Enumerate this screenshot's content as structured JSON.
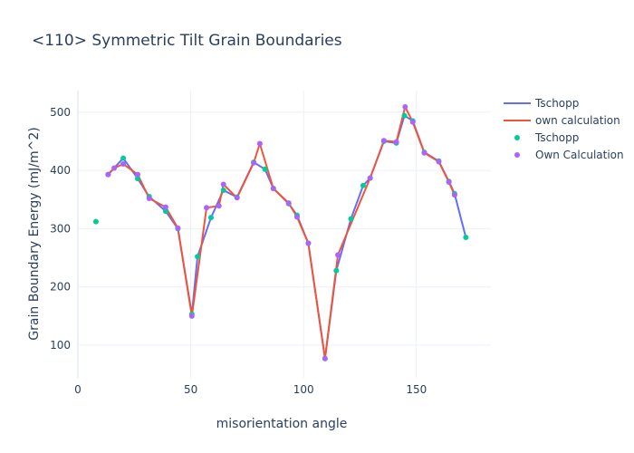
{
  "chart_data": {
    "type": "line",
    "title": "<110> Symmetric Tilt Grain Boundaries",
    "xlabel": "misorientation angle",
    "ylabel": "Grain Boundary Energy (mJ/m^2)",
    "xlim": [
      0,
      183
    ],
    "ylim": [
      44,
      537
    ],
    "xticks": [
      0,
      50,
      100,
      150
    ],
    "yticks": [
      100,
      200,
      300,
      400,
      500
    ],
    "grid": true,
    "legend_position": "top-right",
    "series": [
      {
        "name": "Tschopp",
        "mode": "lines",
        "color": "#636efa",
        "x": [
          13.4,
          20.1,
          26.5,
          31.6,
          38.9,
          44.3,
          50.5,
          53.0,
          58.99,
          64.5,
          70.5,
          77.9,
          82.9,
          86.6,
          93.4,
          97.1,
          102.1,
          109.5,
          114.5,
          121.0,
          126.4,
          129.5,
          135.6,
          141.1,
          144.7,
          148.4,
          153.5,
          159.9,
          164.4,
          166.9,
          171.9
        ],
        "y": [
          393,
          421,
          386,
          355,
          330,
          300,
          153,
          252,
          319,
          366,
          354,
          414,
          402,
          369,
          343,
          323,
          275,
          77,
          228,
          317,
          374,
          387,
          450,
          447,
          494,
          485,
          431,
          416,
          381,
          360,
          285
        ]
      },
      {
        "name": "own calculation",
        "mode": "lines",
        "color": "#ef553b",
        "x": [
          13.4,
          16.1,
          20.1,
          26.5,
          31.6,
          38.9,
          44.3,
          50.5,
          57.0,
          62.5,
          64.5,
          70.5,
          77.9,
          80.6,
          86.6,
          93.4,
          97.1,
          102.1,
          109.5,
          115.2,
          129.5,
          135.6,
          141.1,
          145.0,
          148.4,
          153.5,
          159.9,
          164.4,
          166.9
        ],
        "y": [
          393,
          404,
          411,
          393,
          352,
          337,
          301,
          150,
          336,
          339,
          376,
          353,
          413,
          446,
          369,
          344,
          320,
          275,
          77,
          255,
          387,
          451,
          449,
          509,
          483,
          430,
          415,
          380,
          358
        ]
      },
      {
        "name": "Tschopp",
        "mode": "markers",
        "color": "#00cc96",
        "x": [
          8.0,
          13.4,
          20.1,
          26.5,
          31.6,
          38.9,
          44.3,
          50.5,
          53.0,
          58.99,
          64.5,
          70.5,
          77.9,
          82.9,
          86.6,
          93.4,
          97.1,
          102.1,
          109.5,
          114.5,
          121.0,
          126.4,
          129.5,
          135.6,
          141.1,
          144.7,
          148.4,
          153.5,
          159.9,
          164.4,
          166.9,
          171.9
        ],
        "y": [
          312,
          393,
          421,
          386,
          355,
          330,
          300,
          153,
          252,
          319,
          366,
          354,
          414,
          402,
          369,
          343,
          323,
          275,
          77,
          228,
          317,
          374,
          387,
          450,
          447,
          494,
          485,
          431,
          416,
          381,
          360,
          285
        ]
      },
      {
        "name": "Own Calculation",
        "mode": "markers",
        "color": "#ab63fa",
        "x": [
          13.4,
          16.1,
          20.1,
          26.5,
          31.6,
          38.9,
          44.3,
          50.5,
          57.0,
          62.5,
          64.5,
          70.5,
          77.9,
          80.6,
          86.6,
          93.4,
          97.1,
          102.1,
          109.5,
          115.2,
          129.5,
          135.6,
          141.1,
          145.0,
          148.4,
          153.5,
          159.9,
          164.4,
          166.9
        ],
        "y": [
          393,
          404,
          411,
          393,
          352,
          337,
          301,
          150,
          336,
          339,
          376,
          353,
          413,
          446,
          369,
          344,
          320,
          275,
          77,
          255,
          387,
          451,
          449,
          509,
          483,
          430,
          415,
          380,
          358
        ]
      }
    ]
  }
}
